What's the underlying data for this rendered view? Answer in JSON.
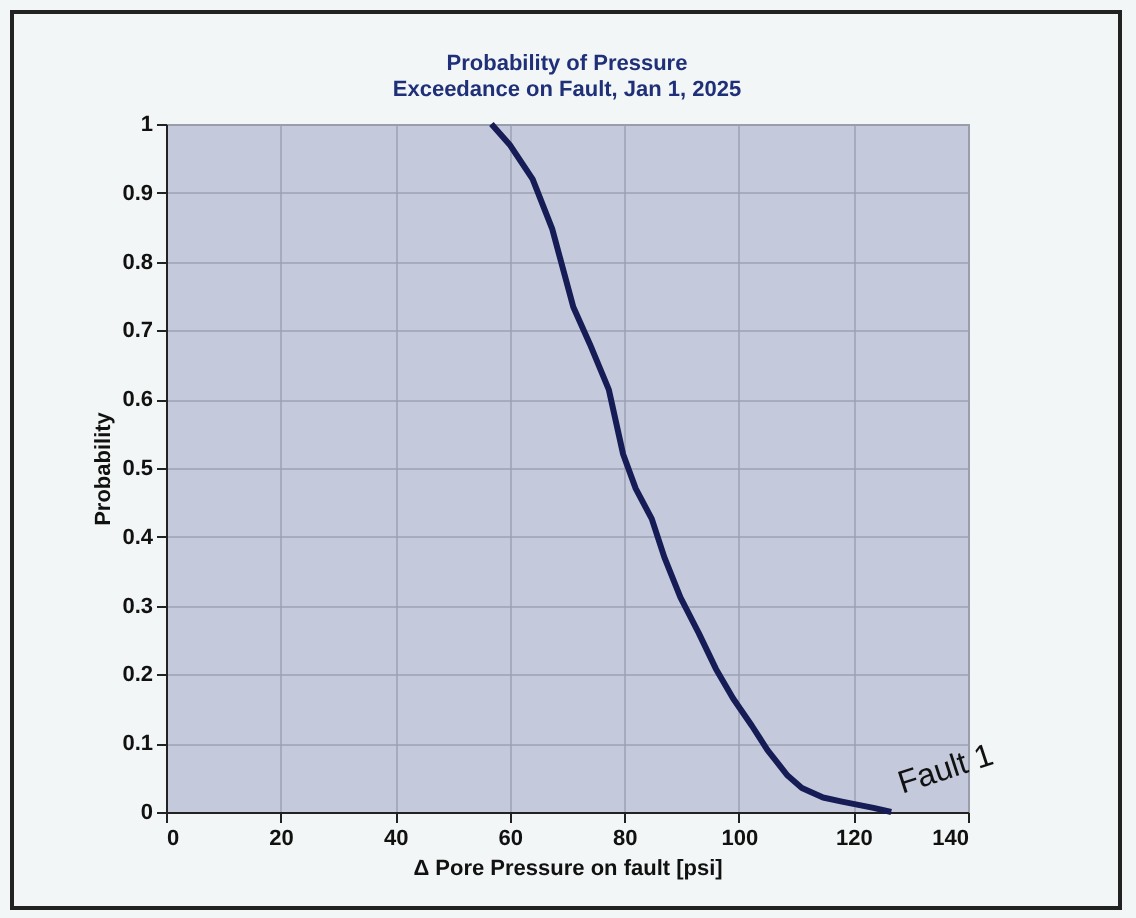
{
  "chart_data": {
    "type": "line",
    "title": [
      "Probability of Pressure",
      "Exceedance on Fault, Jan 1, 2025"
    ],
    "xlabel": "Δ Pore Pressure on fault [psi]",
    "ylabel": "Probability",
    "xlim": [
      0,
      140
    ],
    "xticks": [
      0,
      20,
      40,
      60,
      80,
      100,
      120,
      140
    ],
    "ylim": [
      0,
      1
    ],
    "yticks": [
      0,
      0.1,
      0.2,
      0.3,
      0.4,
      0.5,
      0.6,
      0.7,
      0.8,
      0.9,
      1
    ],
    "grid": true,
    "series": [
      {
        "name": "Fault 1",
        "color": "#161c55",
        "x": [
          56.8,
          60,
          64,
          67.4,
          71.1,
          74,
          77.3,
          79.8,
          82,
          84.8,
          87,
          89.8,
          93,
          96,
          99,
          102.3,
          105,
          108.5,
          111,
          114.7,
          118,
          123.5,
          126.6
        ],
        "values": [
          1,
          0.97,
          0.92,
          0.848,
          0.734,
          0.68,
          0.614,
          0.52,
          0.47,
          0.426,
          0.37,
          0.312,
          0.26,
          0.208,
          0.165,
          0.125,
          0.09,
          0.053,
          0.035,
          0.021,
          0.015,
          0.006,
          0
        ]
      }
    ]
  }
}
